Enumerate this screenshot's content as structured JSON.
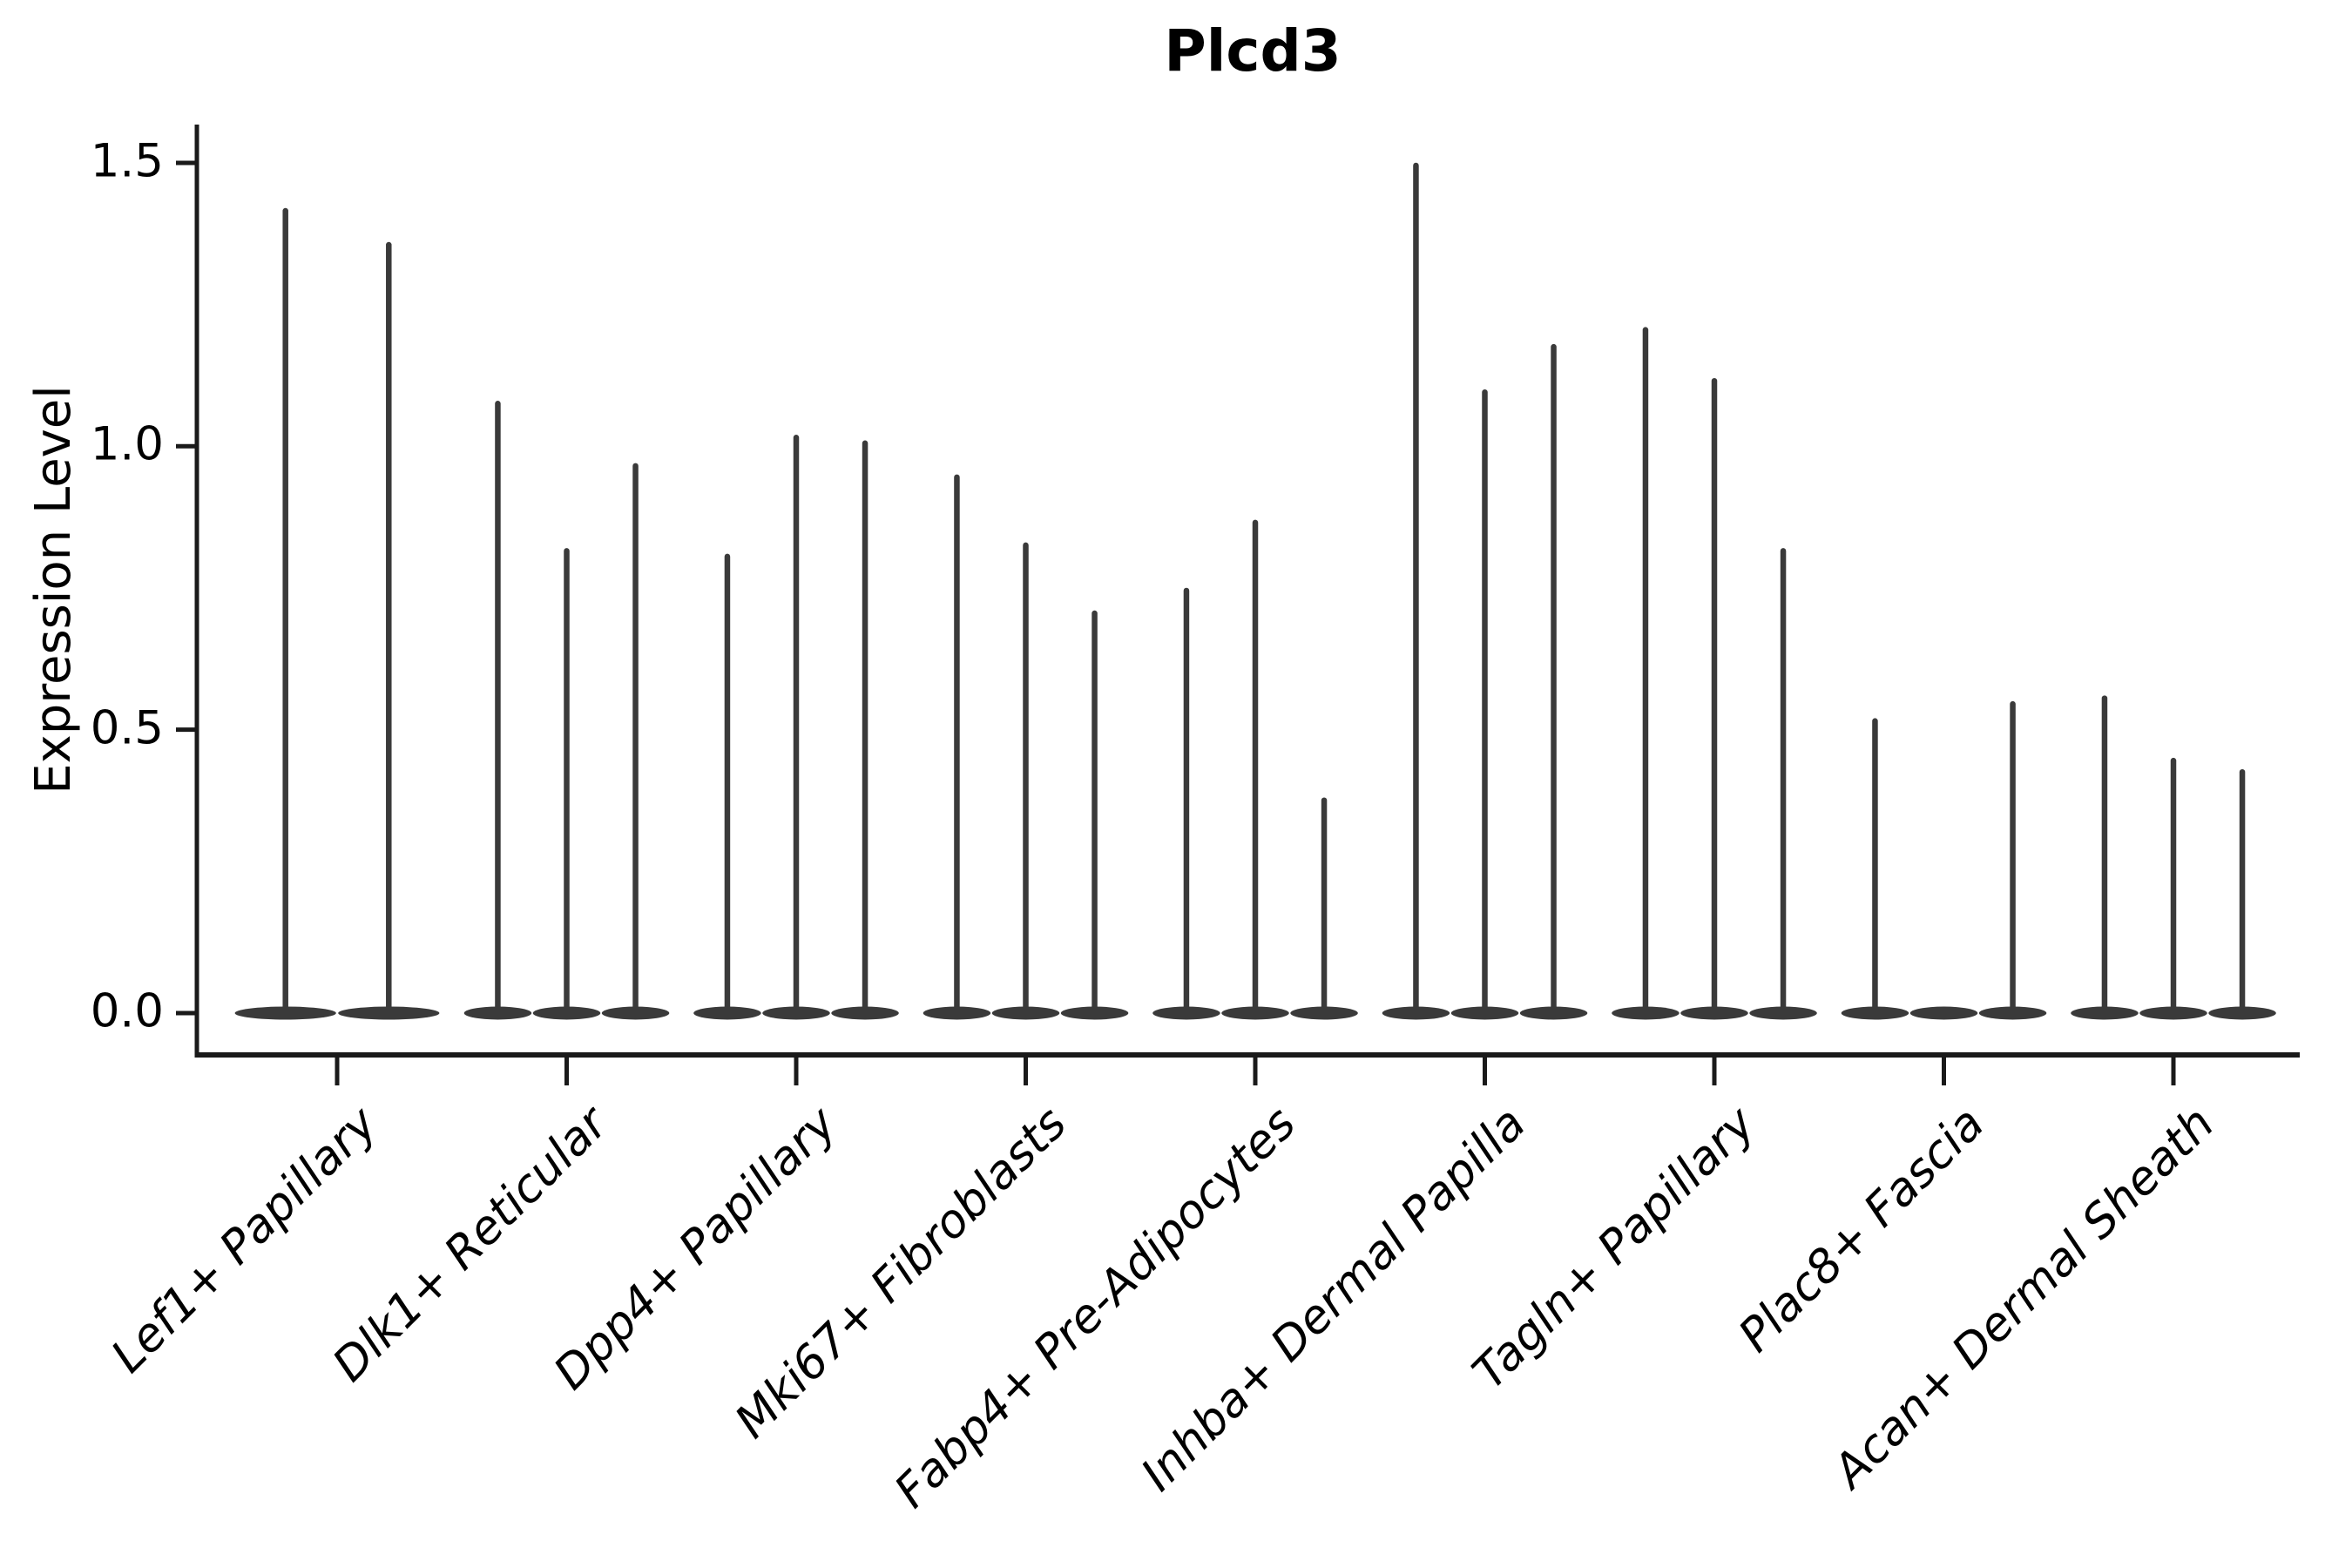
{
  "figure": {
    "title": "Plcd3",
    "y_axis": {
      "label": "Expression Level",
      "tick_labels": [
        "0.0",
        "0.5",
        "1.0",
        "1.5"
      ],
      "tick_values": [
        0,
        0.5,
        1.0,
        1.5
      ]
    }
  },
  "chart_data": {
    "type": "violin",
    "title": "Plcd3",
    "xlabel": "",
    "ylabel": "Expression Level",
    "ylim": [
      -0.075,
      1.575
    ],
    "y_ticks": [
      0,
      0.5,
      1.0,
      1.5
    ],
    "grid": false,
    "legend": false,
    "description": "Each violin is a near-zero-width density spike: a wide flat lens of mass at expression 0 with a thin stem rising to its maximum expression value.",
    "categories": [
      "Lef1+ Papillary",
      "Dlk1+ Reticular",
      "Dpp4+ Papillary",
      "Mki67+ Fibroblasts",
      "Fabp4+ Pre-Adipocytes",
      "Inhba+ Dermal Papilla",
      "Tagln+ Papillary",
      "Plac8+ Fascia",
      "Acan+ Dermal Sheath"
    ],
    "groups": [
      {
        "category": "Lef1+ Papillary",
        "violin_peaks": [
          1.42,
          1.36
        ]
      },
      {
        "category": "Dlk1+ Reticular",
        "violin_peaks": [
          1.08,
          0.82,
          0.97
        ]
      },
      {
        "category": "Dpp4+ Papillary",
        "violin_peaks": [
          0.81,
          1.02,
          1.01
        ]
      },
      {
        "category": "Mki67+ Fibroblasts",
        "violin_peaks": [
          0.95,
          0.83,
          0.71
        ]
      },
      {
        "category": "Fabp4+ Pre-Adipocytes",
        "violin_peaks": [
          0.75,
          0.87,
          0.38
        ]
      },
      {
        "category": "Inhba+ Dermal Papilla",
        "violin_peaks": [
          1.5,
          1.1,
          1.18
        ]
      },
      {
        "category": "Tagln+ Papillary",
        "violin_peaks": [
          1.21,
          1.12,
          0.82
        ]
      },
      {
        "category": "Plac8+ Fascia",
        "violin_peaks": [
          0.52,
          0.0,
          0.55
        ]
      },
      {
        "category": "Acan+ Dermal Sheath",
        "violin_peaks": [
          0.56,
          0.45,
          0.43
        ]
      }
    ],
    "style": {
      "violin_color": "#3a3a3a",
      "axis_color": "#1a1a1a",
      "text_color": "#000000",
      "background": "#ffffff"
    }
  }
}
